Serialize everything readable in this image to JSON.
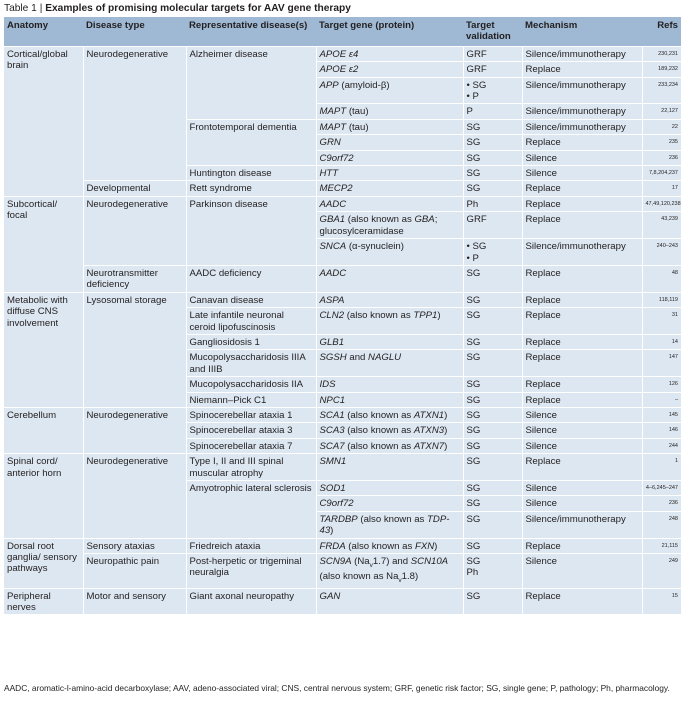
{
  "caption": {
    "label": "Table 1",
    "title": "Examples of promising molecular targets for AAV gene therapy"
  },
  "headers": [
    "Anatomy",
    "Disease type",
    "Representative disease(s)",
    "Target gene (protein)",
    "Target validation",
    "Mechanism",
    "Refs"
  ],
  "rows": [
    {
      "anatomy": "Cortical/global brain",
      "disease_type": "Neurodegenerative",
      "disease": "Alzheimer disease",
      "gene": "APOE ε4",
      "validation": "GRF",
      "mechanism": "Silence/immunotherapy",
      "refs": "230,231"
    },
    {
      "gene": "APOE ε2",
      "validation": "GRF",
      "mechanism": "Replace",
      "refs": "189,232"
    },
    {
      "gene": "APP (amyloid-β)",
      "validation_list": [
        "SG",
        "P"
      ],
      "mechanism": "Silence/immunotherapy",
      "refs": "233,234"
    },
    {
      "gene": "MAPT (tau)",
      "validation": "P",
      "mechanism": "Silence/immunotherapy",
      "refs": "22,127"
    },
    {
      "disease": "Frontotemporal dementia",
      "gene": "MAPT (tau)",
      "validation": "SG",
      "mechanism": "Silence/immunotherapy",
      "refs": "22"
    },
    {
      "gene": "GRN",
      "validation": "SG",
      "mechanism": "Replace",
      "refs": "235"
    },
    {
      "gene": "C9orf72",
      "validation": "SG",
      "mechanism": "Silence",
      "refs": "236"
    },
    {
      "disease": "Huntington disease",
      "gene": "HTT",
      "validation": "SG",
      "mechanism": "Silence",
      "refs": "7,8,204,237"
    },
    {
      "disease_type": "Developmental",
      "disease": "Rett syndrome",
      "gene": "MECP2",
      "validation": "SG",
      "mechanism": "Replace",
      "refs": "17"
    },
    {
      "anatomy": "Subcortical/ focal",
      "disease_type": "Neurodegenerative",
      "disease": "Parkinson disease",
      "gene": "AADC",
      "validation": "Ph",
      "mechanism": "Replace",
      "refs": "47,49,120,238"
    },
    {
      "gene": "GBA1 (also known as GBA; glucosylceramidase",
      "validation": "GRF",
      "mechanism": "Replace",
      "refs": "43,239"
    },
    {
      "gene": "SNCA (α-synuclein)",
      "validation_list": [
        "SG",
        "P"
      ],
      "mechanism": "Silence/immunotherapy",
      "refs": "240–243"
    },
    {
      "disease_type": "Neurotransmitter deficiency",
      "disease": "AADC deficiency",
      "gene": "AADC",
      "validation": "SG",
      "mechanism": "Replace",
      "refs": "48"
    },
    {
      "anatomy": "Metabolic with diffuse CNS involvement",
      "disease_type": "Lysosomal storage",
      "disease": "Canavan disease",
      "gene": "ASPA",
      "validation": "SG",
      "mechanism": "Replace",
      "refs": "118,119"
    },
    {
      "disease": "Late infantile neuronal ceroid lipofuscinosis",
      "gene": "CLN2 (also known as TPP1)",
      "validation": "SG",
      "mechanism": "Replace",
      "refs": "31"
    },
    {
      "disease": "Gangliosidosis 1",
      "gene": "GLB1",
      "validation": "SG",
      "mechanism": "Replace",
      "refs": "14"
    },
    {
      "disease": "Mucopolysaccharidosis IIIA and IIIB",
      "gene": "SGSH and NAGLU",
      "validation": "SG",
      "mechanism": "Replace",
      "refs": "147"
    },
    {
      "disease": "Mucopolysaccharidosis IIA",
      "gene": "IDS",
      "validation": "SG",
      "mechanism": "Replace",
      "refs": "126"
    },
    {
      "disease": "Niemann–Pick C1",
      "gene": "NPC1",
      "validation": "SG",
      "mechanism": "Replace",
      "refs": "–"
    },
    {
      "anatomy": "Cerebellum",
      "disease_type": "Neurodegenerative",
      "disease": "Spinocerebellar ataxia 1",
      "gene": "SCA1 (also known as ATXN1)",
      "validation": "SG",
      "mechanism": "Silence",
      "refs": "145"
    },
    {
      "disease": "Spinocerebellar ataxia 3",
      "gene": "SCA3 (also known as ATXN3)",
      "validation": "SG",
      "mechanism": "Silence",
      "refs": "146"
    },
    {
      "disease": "Spinocerebellar ataxia 7",
      "gene": "SCA7 (also known as ATXN7)",
      "validation": "SG",
      "mechanism": "Silence",
      "refs": "244"
    },
    {
      "anatomy": "Spinal cord/ anterior horn",
      "disease_type": "Neurodegenerative",
      "disease": "Type I, II and III spinal muscular atrophy",
      "gene": "SMN1",
      "validation": "SG",
      "mechanism": "Replace",
      "refs": "1"
    },
    {
      "disease": "Amyotrophic lateral sclerosis",
      "gene": "SOD1",
      "validation": "SG",
      "mechanism": "Silence",
      "refs": "4–6,245–247"
    },
    {
      "gene": "C9orf72",
      "validation": "SG",
      "mechanism": "Silence",
      "refs": "236"
    },
    {
      "gene": "TARDBP (also known as TDP-43)",
      "validation": "SG",
      "mechanism": "Silence/immunotherapy",
      "refs": "248"
    },
    {
      "anatomy": "Dorsal root ganglia/ sensory pathways",
      "disease_type": "Sensory ataxias",
      "disease": "Friedreich ataxia",
      "gene": "FRDA (also known as FXN)",
      "validation": "SG",
      "mechanism": "Replace",
      "refs": "21,115"
    },
    {
      "disease_type": "Neuropathic pain",
      "disease": "Post-herpetic or trigeminal neuralgia",
      "gene": "SCN9A (Na",
      "gene_sub": "v",
      "gene_tail": "1.7) and SCN10A (also known as Na",
      "gene_sub2": "v",
      "gene_tail2": "1.8)",
      "validation_list2": [
        "SG",
        "Ph"
      ],
      "mechanism": "Silence",
      "refs": "249"
    },
    {
      "anatomy": "Peripheral nerves",
      "disease_type": "Motor and sensory",
      "disease": "Giant axonal neuropathy",
      "gene": "GAN",
      "validation": "SG",
      "mechanism": "Replace",
      "refs": "15"
    }
  ],
  "footnote": "AADC, aromatic-l-amino-acid decarboxylase; AAV, adeno-associated viral; CNS, central nervous system; GRF, genetic risk factor; SG, single gene; P, pathology; Ph, pharmacology."
}
